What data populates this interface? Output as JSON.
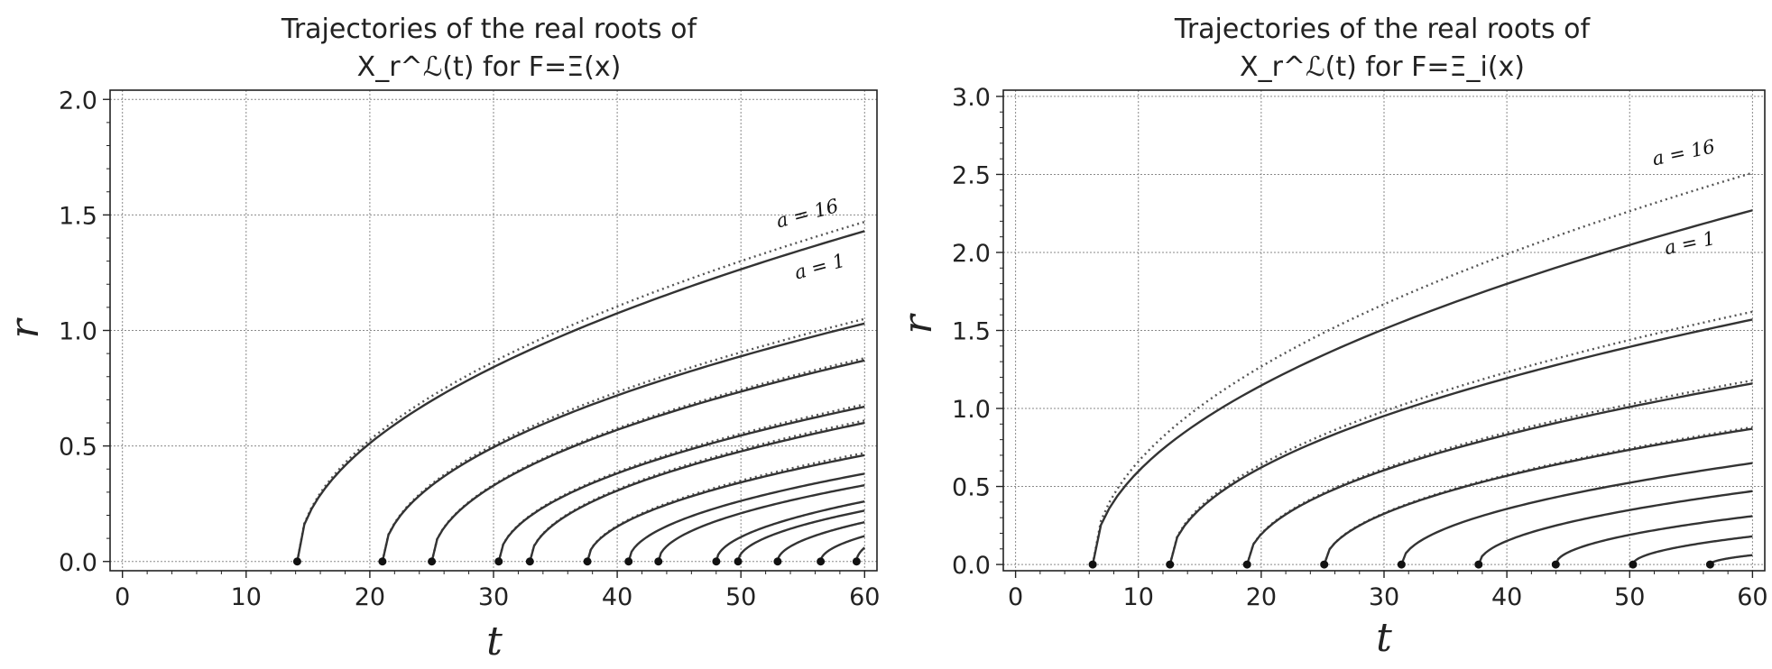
{
  "chart_data": [
    {
      "type": "line",
      "title": [
        "Trajectories of the real roots of",
        "X_r^ℒ(t) for F=Ξ(x)"
      ],
      "title_lines": {
        "line1": "Trajectories of the real roots of",
        "line2": "X_r^ℒ(t) for F=Ξ(x)"
      },
      "xlabel": "t",
      "ylabel": "r",
      "xlim": [
        -1,
        61
      ],
      "ylim": [
        -0.04,
        2.04
      ],
      "xticks": [
        0,
        10,
        20,
        30,
        40,
        50,
        60
      ],
      "yticks": [
        0.0,
        0.5,
        1.0,
        1.5,
        2.0
      ],
      "xtick_labels": [
        "0",
        "10",
        "20",
        "30",
        "40",
        "50",
        "60"
      ],
      "ytick_labels": [
        "0.0",
        "0.5",
        "1.0",
        "1.5",
        "2.0"
      ],
      "grid": true,
      "annotations": [
        {
          "text": "a = 16",
          "x": 55.5,
          "y": 1.48,
          "rotation": -15
        },
        {
          "text": "a = 1",
          "x": 56.5,
          "y": 1.25,
          "rotation": -15
        }
      ],
      "series_solid": [
        {
          "start": 14.13,
          "end_value": 1.43
        },
        {
          "start": 21.02,
          "end_value": 1.03
        },
        {
          "start": 25.01,
          "end_value": 0.87
        },
        {
          "start": 30.42,
          "end_value": 0.67
        },
        {
          "start": 32.94,
          "end_value": 0.6
        },
        {
          "start": 37.59,
          "end_value": 0.46
        },
        {
          "start": 40.92,
          "end_value": 0.38
        },
        {
          "start": 43.33,
          "end_value": 0.33
        },
        {
          "start": 48.01,
          "end_value": 0.26
        },
        {
          "start": 49.77,
          "end_value": 0.22
        },
        {
          "start": 52.97,
          "end_value": 0.17
        },
        {
          "start": 56.45,
          "end_value": 0.11
        },
        {
          "start": 59.35,
          "end_value": 0.06
        }
      ],
      "series_dotted": [
        {
          "start": 14.13,
          "end_value": 1.47
        },
        {
          "start": 21.02,
          "end_value": 1.05
        },
        {
          "start": 25.01,
          "end_value": 0.88
        },
        {
          "start": 30.42,
          "end_value": 0.68
        },
        {
          "start": 32.94,
          "end_value": 0.61
        },
        {
          "start": 37.59,
          "end_value": 0.47
        }
      ]
    },
    {
      "type": "line",
      "title": [
        "Trajectories of the real roots of",
        "X_r^ℒ(t) for F=Ξ_i(x)"
      ],
      "title_lines": {
        "line1": "Trajectories of the real roots of",
        "line2": "X_r^ℒ(t) for F=Ξ_i(x)"
      },
      "xlabel": "t",
      "ylabel": "r",
      "xlim": [
        -1,
        61
      ],
      "ylim": [
        -0.04,
        3.04
      ],
      "xticks": [
        0,
        10,
        20,
        30,
        40,
        50,
        60
      ],
      "yticks": [
        0.0,
        0.5,
        1.0,
        1.5,
        2.0,
        2.5,
        3.0
      ],
      "xtick_labels": [
        "0",
        "10",
        "20",
        "30",
        "40",
        "50",
        "60"
      ],
      "ytick_labels": [
        "0.0",
        "0.5",
        "1.0",
        "1.5",
        "2.0",
        "2.5",
        "3.0"
      ],
      "grid": true,
      "annotations": [
        {
          "text": "a = 16",
          "x": 54.5,
          "y": 2.6,
          "rotation": -12
        },
        {
          "text": "a = 1",
          "x": 55.0,
          "y": 2.02,
          "rotation": -12
        }
      ],
      "series_solid": [
        {
          "start": 6.28,
          "end_value": 2.27
        },
        {
          "start": 12.57,
          "end_value": 1.57
        },
        {
          "start": 18.85,
          "end_value": 1.16
        },
        {
          "start": 25.13,
          "end_value": 0.87
        },
        {
          "start": 31.42,
          "end_value": 0.65
        },
        {
          "start": 37.7,
          "end_value": 0.47
        },
        {
          "start": 43.98,
          "end_value": 0.31
        },
        {
          "start": 50.27,
          "end_value": 0.18
        },
        {
          "start": 56.55,
          "end_value": 0.06
        }
      ],
      "series_dotted": [
        {
          "start": 6.28,
          "end_value": 2.51
        },
        {
          "start": 12.57,
          "end_value": 1.62
        },
        {
          "start": 18.85,
          "end_value": 1.18
        },
        {
          "start": 25.13,
          "end_value": 0.88
        }
      ]
    }
  ]
}
